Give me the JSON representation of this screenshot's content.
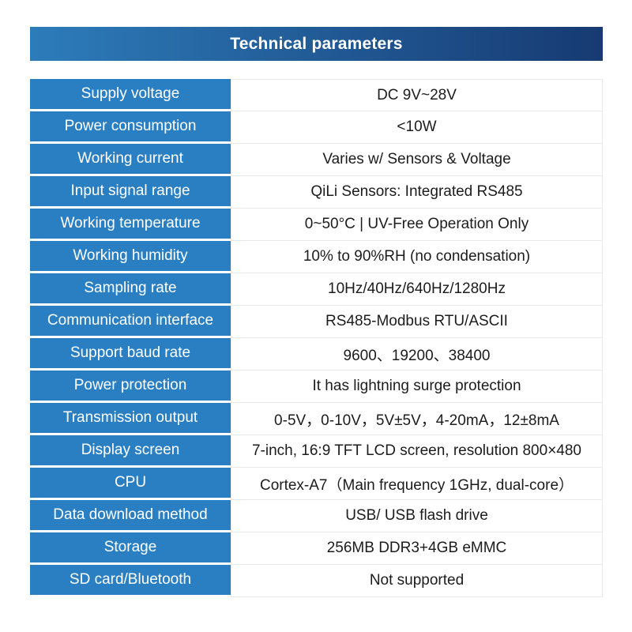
{
  "title_bar": {
    "title": "Technical parameters"
  },
  "colors": {
    "header_gradient_start": "#2d7cba",
    "header_gradient_end": "#173a72",
    "cell_blue": "#2a7fc2",
    "value_border": "#e9e9e9",
    "value_text": "#1c1c1c"
  },
  "table": {
    "rows": [
      {
        "label": "Supply voltage",
        "value": "DC 9V~28V"
      },
      {
        "label": "Power consumption",
        "value": "<10W"
      },
      {
        "label": "Working current",
        "value": "Varies w/ Sensors & Voltage"
      },
      {
        "label": "Input signal range",
        "value": "QiLi Sensors: Integrated RS485"
      },
      {
        "label": "Working temperature",
        "value": "0~50°C | UV-Free Operation Only"
      },
      {
        "label": "Working humidity",
        "value": "10% to 90%RH (no condensation)"
      },
      {
        "label": "Sampling rate",
        "value": "10Hz/40Hz/640Hz/1280Hz"
      },
      {
        "label": "Communication interface",
        "value": "RS485-Modbus RTU/ASCII"
      },
      {
        "label": "Support baud rate",
        "value": "9600、19200、38400"
      },
      {
        "label": "Power protection",
        "value": "It has lightning surge protection"
      },
      {
        "label": "Transmission output",
        "value": "0-5V，0-10V，5V±5V，4-20mA，12±8mA"
      },
      {
        "label": "Display screen",
        "value": "7-inch, 16:9 TFT LCD screen, resolution 800×480"
      },
      {
        "label": "CPU",
        "value": "Cortex-A7（Main frequency 1GHz, dual-core）"
      },
      {
        "label": "Data download method",
        "value": "USB/ USB flash drive"
      },
      {
        "label": "Storage",
        "value": "256MB DDR3+4GB eMMC"
      },
      {
        "label": "SD card/Bluetooth",
        "value": "Not supported"
      }
    ]
  }
}
